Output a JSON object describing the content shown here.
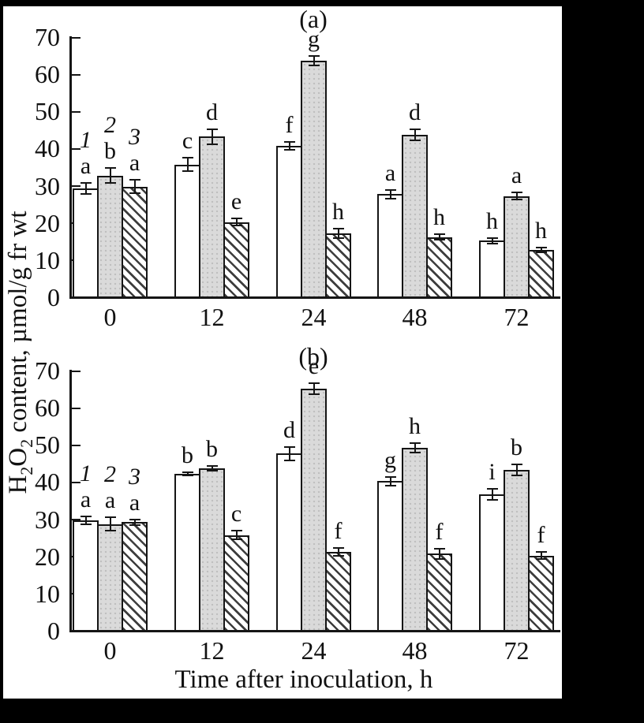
{
  "figure": {
    "xlabel": "Time after inoculation, h",
    "ylabel_tokens": [
      "H",
      {
        "sub": "2"
      },
      "O",
      {
        "sub": "2"
      },
      " content, µmol/g fr wt"
    ],
    "colors": {
      "ink": "#151515",
      "gray_bar": "#dadada",
      "background": "#ffffff",
      "frame": "#000000"
    }
  },
  "chart_data": [
    {
      "type": "bar",
      "panel_label": "(a)",
      "categories": [
        "0",
        "12",
        "24",
        "48",
        "72"
      ],
      "xlabel": "Time after inoculation, h",
      "ylabel": "H2O2 content, µmol/g fr wt",
      "ylim": [
        0,
        70
      ],
      "yticks": [
        0,
        10,
        20,
        30,
        40,
        50,
        60,
        70
      ],
      "grid": false,
      "legend_position": "none",
      "series_marker_category_index": 0,
      "series": [
        {
          "name": "1",
          "style": "white",
          "values": [
            29,
            35.5,
            40.5,
            27.5,
            15
          ],
          "errors": [
            1.5,
            1.8,
            1,
            1.2,
            0.8
          ],
          "letters": [
            "a",
            "c",
            "f",
            "a",
            "h"
          ]
        },
        {
          "name": "2",
          "style": "gray",
          "values": [
            32.5,
            43,
            63.5,
            43.5,
            27
          ],
          "errors": [
            2,
            2,
            1.3,
            1.5,
            1
          ],
          "letters": [
            "b",
            "d",
            "g",
            "d",
            "a"
          ]
        },
        {
          "name": "3",
          "style": "hatched",
          "values": [
            29.5,
            20,
            17,
            16,
            12.5
          ],
          "errors": [
            1.8,
            1,
            1.2,
            0.7,
            0.7
          ],
          "letters": [
            "a",
            "e",
            "h",
            "h",
            "h"
          ]
        }
      ]
    },
    {
      "type": "bar",
      "panel_label": "(b)",
      "categories": [
        "0",
        "12",
        "24",
        "48",
        "72"
      ],
      "xlabel": "Time after inoculation, h",
      "ylabel": "H2O2 content, µmol/g fr wt",
      "ylim": [
        0,
        70
      ],
      "yticks": [
        0,
        10,
        20,
        30,
        40,
        50,
        60,
        70
      ],
      "grid": false,
      "legend_position": "none",
      "series_marker_category_index": 0,
      "series": [
        {
          "name": "1",
          "style": "white",
          "values": [
            29.5,
            42,
            47.5,
            40,
            36.5
          ],
          "errors": [
            1,
            0.4,
            1.8,
            1.2,
            1.5
          ],
          "letters": [
            "a",
            "b",
            "d",
            "g",
            "i"
          ]
        },
        {
          "name": "2",
          "style": "gray",
          "values": [
            28.5,
            43.5,
            65,
            49,
            43
          ],
          "errors": [
            1.8,
            0.7,
            1.5,
            1.2,
            1.5
          ],
          "letters": [
            "a",
            "b",
            "e",
            "h",
            "b"
          ]
        },
        {
          "name": "3",
          "style": "hatched",
          "values": [
            29,
            25.5,
            21,
            20.5,
            20
          ],
          "errors": [
            0.8,
            1.2,
            1,
            1.4,
            1
          ],
          "letters": [
            "a",
            "c",
            "f",
            "f",
            "f"
          ]
        }
      ]
    }
  ]
}
